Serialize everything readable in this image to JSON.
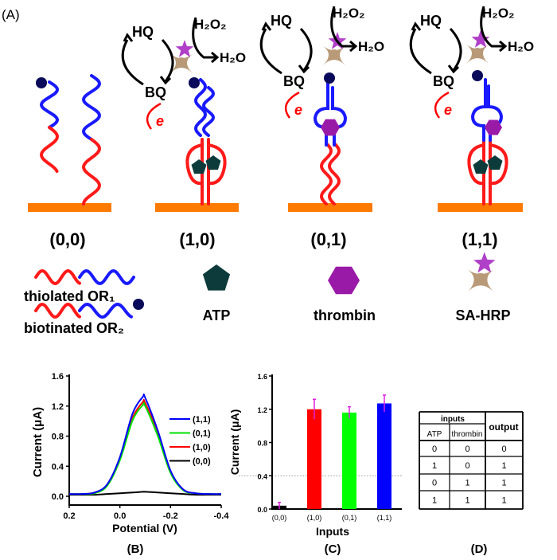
{
  "panel_labels": {
    "a": "(A)",
    "b": "(B)",
    "c": "(C)",
    "d": "(D)"
  },
  "scenes": [
    {
      "label": "(0,0)"
    },
    {
      "label": "(1,0)",
      "hq": "HQ",
      "h2o2": "H₂O₂",
      "h2o": "H₂O",
      "bq": "BQ",
      "e": "e"
    },
    {
      "label": "(0,1)",
      "hq": "HQ",
      "h2o2": "H₂O₂",
      "h2o": "H₂O",
      "bq": "BQ",
      "e": "e"
    },
    {
      "label": "(1,1)",
      "hq": "HQ",
      "h2o2": "H₂O₂",
      "h2o": "H₂O",
      "bq": "BQ",
      "e": "e"
    }
  ],
  "legend": {
    "thiolated": "thiolated OR₁",
    "biotinated": "biotinated OR₂",
    "atp": "ATP",
    "thrombin": "thrombin",
    "sahrp": "SA-HRP"
  },
  "colors": {
    "surface": "#ff7a00",
    "strand_red": "#ff1a1a",
    "strand_blue": "#1a1aff",
    "biotin": "#0a0a5a",
    "atp": "#0d3b3b",
    "thrombin": "#9a1aa8",
    "sa_brown": "#b89a78",
    "hrp_purple": "#b040c8",
    "error_bar": "#e020e0"
  },
  "chart_data": [
    {
      "type": "line",
      "xlabel": "Potential (V)",
      "ylabel": "Current (μA)",
      "xlim": [
        0.2,
        -0.4
      ],
      "ylim": [
        0,
        1.6
      ],
      "xticks": [
        "0.2",
        "0.0",
        "-0.2",
        "-0.4"
      ],
      "yticks": [
        "0.0",
        "0.4",
        "0.8",
        "1.2",
        "1.6"
      ],
      "legend_position": "right",
      "x": [
        0.2,
        0.15,
        0.1,
        0.05,
        0,
        -0.05,
        -0.09,
        -0.1,
        -0.15,
        -0.2,
        -0.25,
        -0.3,
        -0.35,
        -0.4
      ],
      "series": [
        {
          "name": "(1,1)",
          "color": "#0000ff",
          "values": [
            0.03,
            0.03,
            0.05,
            0.16,
            0.52,
            1.1,
            1.32,
            1.31,
            0.87,
            0.34,
            0.09,
            0.04,
            0.03,
            0.03
          ]
        },
        {
          "name": "(0,1)",
          "color": "#00e000",
          "values": [
            0.03,
            0.03,
            0.04,
            0.14,
            0.48,
            1.01,
            1.21,
            1.2,
            0.8,
            0.31,
            0.08,
            0.04,
            0.03,
            0.03
          ]
        },
        {
          "name": "(1,0)",
          "color": "#ff0000",
          "values": [
            0.03,
            0.03,
            0.05,
            0.15,
            0.49,
            1.04,
            1.25,
            1.24,
            0.83,
            0.32,
            0.09,
            0.04,
            0.03,
            0.03
          ]
        },
        {
          "name": "(0,0)",
          "color": "#000000",
          "values": [
            0.02,
            0.02,
            0.02,
            0.03,
            0.04,
            0.05,
            0.06,
            0.06,
            0.05,
            0.04,
            0.03,
            0.02,
            0.02,
            0.02
          ]
        }
      ]
    },
    {
      "type": "bar",
      "xlabel": "Inputs",
      "ylabel": "Current (μA)",
      "ylim": [
        0,
        1.6
      ],
      "yticks": [
        "0.0",
        "0.4",
        "0.8",
        "1.2",
        "1.6"
      ],
      "threshold": 0.4,
      "categories": [
        "(0,0)",
        "(1,0)",
        "(0,1)",
        "(1,1)"
      ],
      "values": [
        0.04,
        1.2,
        1.16,
        1.27
      ],
      "errors": [
        0.04,
        0.12,
        0.07,
        0.1
      ],
      "colors": [
        "#000000",
        "#ff0000",
        "#00ff00",
        "#0000ff"
      ]
    }
  ],
  "truth_table": {
    "inputs_header": "inputs",
    "output_header": "output",
    "columns": [
      "ATP",
      "thrombin"
    ],
    "rows": [
      [
        "0",
        "0",
        "0"
      ],
      [
        "1",
        "0",
        "1"
      ],
      [
        "0",
        "1",
        "1"
      ],
      [
        "1",
        "1",
        "1"
      ]
    ]
  }
}
